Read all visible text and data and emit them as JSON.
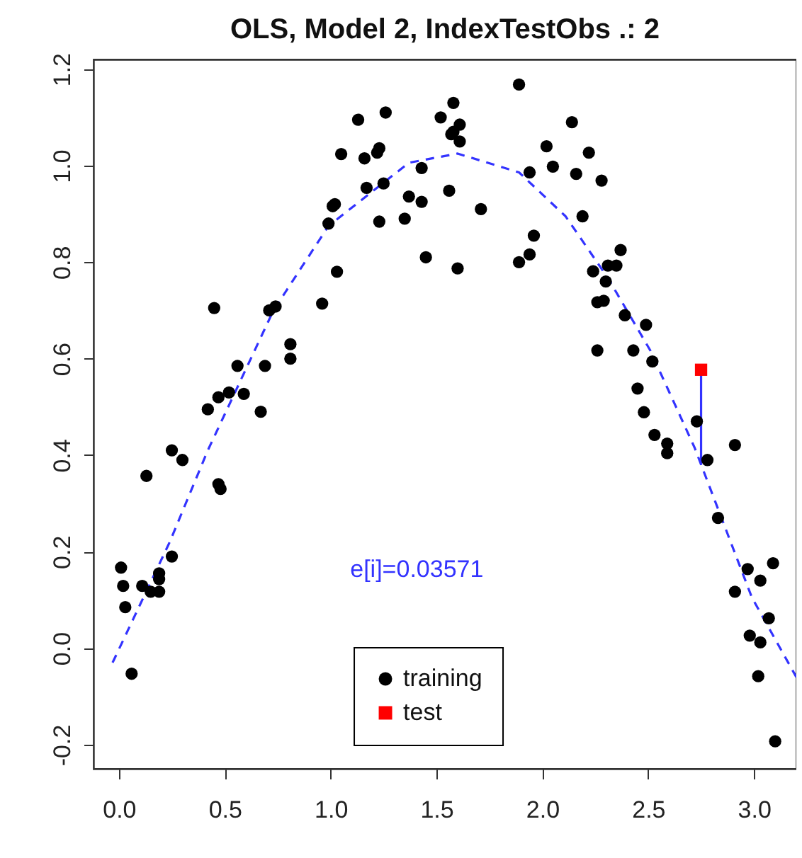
{
  "chart_data": {
    "type": "scatter",
    "title": "OLS, Model 2, IndexTestObs .: 2",
    "annotations": [
      "e[i]=0.03571"
    ],
    "xlim": [
      -0.12,
      3.2
    ],
    "ylim": [
      -0.25,
      1.22
    ],
    "xticks": [
      {
        "value": 0,
        "label": "0.0"
      },
      {
        "value": 0.5,
        "label": "0.5"
      },
      {
        "value": 1,
        "label": "1.0"
      },
      {
        "value": 1.5,
        "label": "1.5"
      },
      {
        "value": 2,
        "label": "2.0"
      },
      {
        "value": 2.5,
        "label": "2.5"
      },
      {
        "value": 3,
        "label": "3.0"
      }
    ],
    "yticks": [
      {
        "value": -0.2,
        "label": "-0.2"
      },
      {
        "value": 0,
        "label": "0.0"
      },
      {
        "value": 0.2,
        "label": "0.2"
      },
      {
        "value": 0.4,
        "label": "0.4"
      },
      {
        "value": 0.6,
        "label": "0.6"
      },
      {
        "value": 0.8,
        "label": "0.8"
      },
      {
        "value": 1,
        "label": "1.0"
      },
      {
        "value": 1.2,
        "label": "1.2"
      }
    ],
    "legend": "bottom",
    "series": [
      {
        "name": "training",
        "marker": "circle",
        "color": "#000000",
        "x": [
          0.01,
          0.02,
          0.03,
          0.06,
          0.11,
          0.13,
          0.15,
          0.19,
          0.19,
          0.19,
          0.25,
          0.25,
          0.3,
          0.42,
          0.45,
          0.47,
          0.47,
          0.48,
          0.52,
          0.56,
          0.59,
          0.67,
          0.69,
          0.71,
          0.74,
          0.81,
          0.81,
          0.96,
          0.99,
          1.01,
          1.02,
          1.03,
          1.05,
          1.13,
          1.16,
          1.17,
          1.22,
          1.23,
          1.23,
          1.25,
          1.26,
          1.35,
          1.37,
          1.43,
          1.43,
          1.45,
          1.52,
          1.56,
          1.57,
          1.58,
          1.58,
          1.6,
          1.61,
          1.61,
          1.71,
          1.89,
          1.89,
          1.94,
          1.94,
          1.96,
          2.02,
          2.05,
          2.14,
          2.16,
          2.19,
          2.22,
          2.24,
          2.26,
          2.26,
          2.28,
          2.29,
          2.3,
          2.31,
          2.35,
          2.37,
          2.39,
          2.43,
          2.45,
          2.48,
          2.49,
          2.52,
          2.53,
          2.59,
          2.59,
          2.73,
          2.78,
          2.83,
          2.91,
          2.91,
          2.97,
          2.98,
          3.02,
          3.03,
          3.03,
          3.07,
          3.09,
          3.1
        ],
        "values": [
          0.167,
          0.129,
          0.085,
          -0.053,
          0.129,
          0.357,
          0.117,
          0.155,
          0.143,
          0.117,
          0.19,
          0.41,
          0.39,
          0.495,
          0.705,
          0.52,
          0.34,
          0.33,
          0.53,
          0.585,
          0.527,
          0.49,
          0.585,
          0.7,
          0.708,
          0.63,
          0.6,
          0.714,
          0.88,
          0.916,
          0.92,
          0.78,
          1.024,
          1.095,
          1.015,
          0.954,
          1.027,
          1.036,
          0.884,
          0.963,
          1.11,
          0.89,
          0.936,
          0.995,
          0.925,
          0.81,
          1.1,
          0.948,
          1.065,
          1.13,
          1.07,
          0.787,
          1.085,
          1.05,
          0.91,
          1.168,
          0.8,
          0.986,
          0.816,
          0.855,
          1.04,
          0.998,
          1.09,
          0.983,
          0.895,
          1.027,
          0.781,
          0.717,
          0.617,
          0.969,
          0.72,
          0.76,
          0.793,
          0.793,
          0.825,
          0.69,
          0.617,
          0.538,
          0.489,
          0.67,
          0.594,
          0.442,
          0.424,
          0.404,
          0.47,
          0.39,
          0.27,
          0.421,
          0.117,
          0.164,
          0.026,
          -0.058,
          0.14,
          0.012,
          0.062,
          0.176,
          -0.193
        ]
      },
      {
        "name": "test",
        "marker": "square",
        "color": "#ff0000",
        "x": [
          2.75
        ],
        "values": [
          0.577
        ]
      },
      {
        "type": "line",
        "line_style": "dashed",
        "color": "#3333ff",
        "x": [
          -0.03,
          0.24,
          0.42,
          0.73,
          0.99,
          1.37,
          1.6,
          1.89,
          2.11,
          2.31,
          2.51,
          2.72,
          2.99,
          3.2
        ],
        "values": [
          -0.03,
          0.22,
          0.41,
          0.7,
          0.875,
          1.006,
          1.025,
          0.986,
          0.895,
          0.767,
          0.617,
          0.415,
          0.105,
          -0.06
        ]
      },
      {
        "type": "line",
        "line_style": "solid",
        "color": "#3333ff",
        "x": [
          2.75,
          2.75
        ],
        "values": [
          0.577,
          0.38
        ]
      }
    ]
  }
}
